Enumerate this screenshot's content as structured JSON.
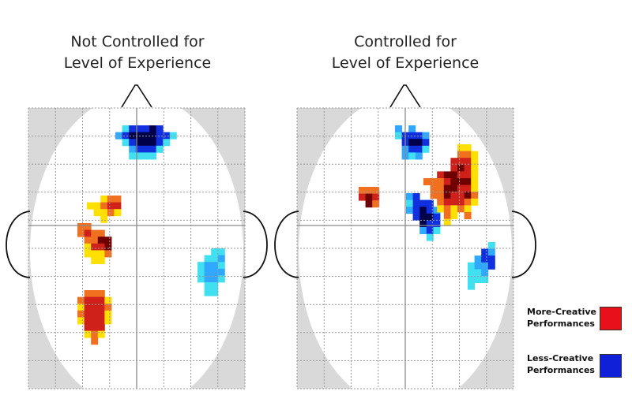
{
  "panels": [
    {
      "id": "left",
      "title_line1": "Not Controlled for",
      "title_line2": "Level of Experience"
    },
    {
      "id": "right",
      "title_line1": "Controlled for",
      "title_line2": "Level of Experience"
    }
  ],
  "legend": {
    "items": [
      {
        "line1": "More-Creative",
        "line2": "Performances",
        "color": "#e8101a"
      },
      {
        "line1": "Less-Creative",
        "line2": "Performances",
        "color": "#1020d8"
      }
    ]
  },
  "colors": {
    "dark_red": "#6e0000",
    "red": "#d0201a",
    "orange": "#f07020",
    "yellow": "#ffe000",
    "dark_blue": "#00004a",
    "blue": "#1030e0",
    "light_blue": "#30a8ff",
    "cyan": "#40e0f0",
    "brain_outline_fill": "#d9d9d9",
    "brain_fill": "#ffffff",
    "grid": "#9a9a9a"
  }
}
